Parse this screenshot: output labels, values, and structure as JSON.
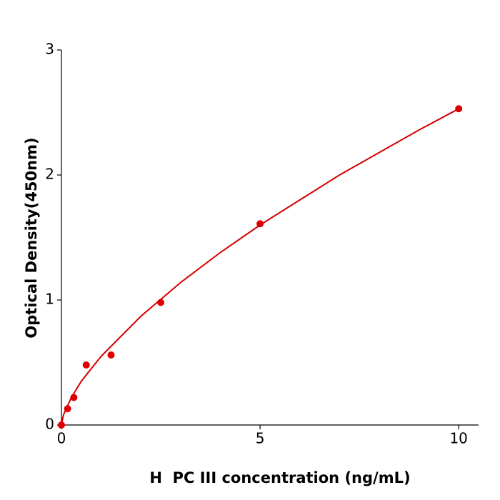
{
  "chart_data": {
    "type": "scatter",
    "x_label": "H  PC III concentration (ng/mL)",
    "y_label": "Optical Density(450nm)",
    "xlim": [
      0,
      10.5
    ],
    "xticks": [
      0,
      5,
      10
    ],
    "ylim": [
      0,
      3
    ],
    "yticks": [
      0,
      1,
      2,
      3
    ],
    "series": [
      {
        "type": "scatter",
        "color": "#e00000",
        "x": [
          0,
          0.156,
          0.3125,
          0.625,
          1.25,
          2.5,
          5,
          10
        ],
        "values": [
          0,
          0.13,
          0.22,
          0.48,
          0.56,
          0.98,
          1.61,
          2.53
        ]
      },
      {
        "type": "line",
        "color": "#d40000",
        "x": [
          0,
          0.05,
          0.25,
          0.5,
          1,
          2,
          3,
          4,
          5,
          6,
          7,
          8,
          9,
          10
        ],
        "values": [
          0,
          0.08,
          0.22,
          0.35,
          0.55,
          0.87,
          1.14,
          1.38,
          1.6,
          1.8,
          2.0,
          2.18,
          2.36,
          2.53
        ]
      }
    ]
  }
}
